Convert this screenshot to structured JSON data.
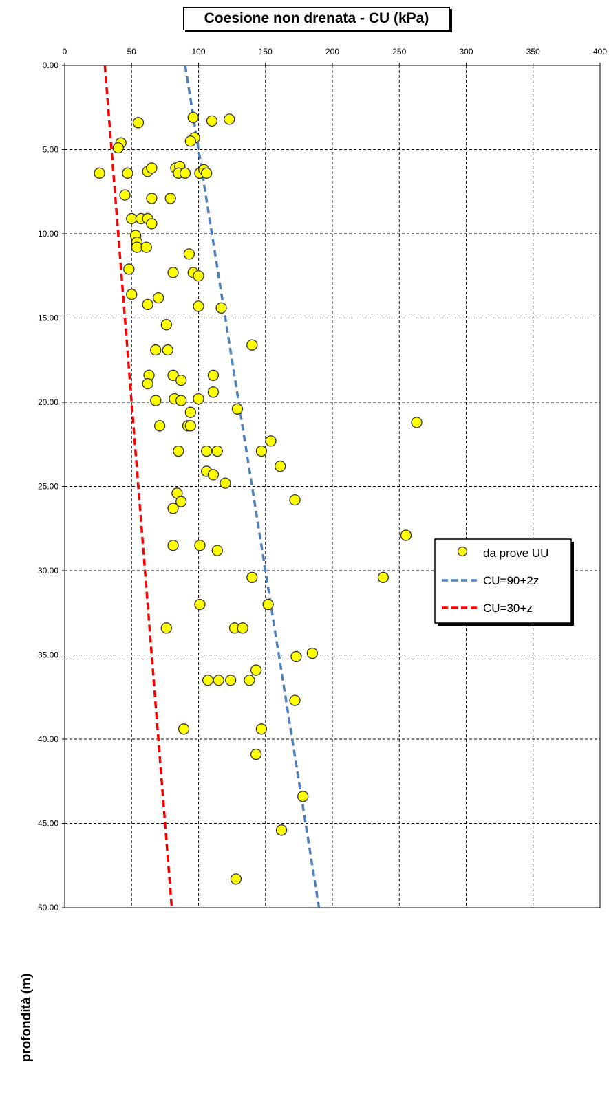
{
  "chart_data": {
    "type": "scatter",
    "title": "Coesione non drenata - CU (kPa)",
    "xlabel": "",
    "ylabel": "profondità (m)",
    "xlim": [
      0,
      400
    ],
    "ylim": [
      0,
      50
    ],
    "y_inverted": true,
    "x_axis_position": "top",
    "x_ticks": [
      "0",
      "50",
      "100",
      "150",
      "200",
      "250",
      "300",
      "350",
      "400"
    ],
    "y_ticks": [
      "0.00",
      "5.00",
      "10.00",
      "15.00",
      "20.00",
      "25.00",
      "30.00",
      "35.00",
      "40.00",
      "45.00",
      "50.00"
    ],
    "grid": true,
    "legend_position": "right",
    "series": [
      {
        "name": "da prove UU",
        "kind": "points",
        "color": "#ffff00",
        "edge_color": "#333333",
        "points": [
          [
            96,
            3.1
          ],
          [
            110,
            3.3
          ],
          [
            123,
            3.2
          ],
          [
            55,
            3.4
          ],
          [
            97,
            4.3
          ],
          [
            94,
            4.5
          ],
          [
            42,
            4.6
          ],
          [
            40,
            4.9
          ],
          [
            26,
            6.4
          ],
          [
            47,
            6.4
          ],
          [
            62,
            6.3
          ],
          [
            65,
            6.1
          ],
          [
            83,
            6.1
          ],
          [
            86,
            6.0
          ],
          [
            85,
            6.4
          ],
          [
            90,
            6.4
          ],
          [
            101,
            6.4
          ],
          [
            104,
            6.2
          ],
          [
            106,
            6.4
          ],
          [
            45,
            7.7
          ],
          [
            65,
            7.9
          ],
          [
            79,
            7.9
          ],
          [
            50,
            9.1
          ],
          [
            57,
            9.1
          ],
          [
            62,
            9.1
          ],
          [
            65,
            9.4
          ],
          [
            53,
            10.1
          ],
          [
            54,
            10.5
          ],
          [
            54,
            10.8
          ],
          [
            61,
            10.8
          ],
          [
            93,
            11.2
          ],
          [
            48,
            12.1
          ],
          [
            81,
            12.3
          ],
          [
            96,
            12.3
          ],
          [
            100,
            12.5
          ],
          [
            50,
            13.6
          ],
          [
            70,
            13.8
          ],
          [
            62,
            14.2
          ],
          [
            100,
            14.3
          ],
          [
            117,
            14.4
          ],
          [
            76,
            15.4
          ],
          [
            140,
            16.6
          ],
          [
            68,
            16.9
          ],
          [
            77,
            16.9
          ],
          [
            63,
            18.4
          ],
          [
            81,
            18.4
          ],
          [
            87,
            18.7
          ],
          [
            111,
            18.4
          ],
          [
            62,
            18.9
          ],
          [
            111,
            19.4
          ],
          [
            68,
            19.9
          ],
          [
            82,
            19.8
          ],
          [
            87,
            19.9
          ],
          [
            100,
            19.8
          ],
          [
            129,
            20.4
          ],
          [
            94,
            20.6
          ],
          [
            71,
            21.4
          ],
          [
            92,
            21.4
          ],
          [
            94,
            21.4
          ],
          [
            263,
            21.2
          ],
          [
            154,
            22.3
          ],
          [
            85,
            22.9
          ],
          [
            106,
            22.9
          ],
          [
            114,
            22.9
          ],
          [
            147,
            22.9
          ],
          [
            161,
            23.8
          ],
          [
            106,
            24.1
          ],
          [
            111,
            24.3
          ],
          [
            120,
            24.8
          ],
          [
            84,
            25.4
          ],
          [
            87,
            25.9
          ],
          [
            81,
            26.3
          ],
          [
            172,
            25.8
          ],
          [
            255,
            27.9
          ],
          [
            81,
            28.5
          ],
          [
            101,
            28.5
          ],
          [
            114,
            28.8
          ],
          [
            140,
            30.4
          ],
          [
            238,
            30.4
          ],
          [
            101,
            32.0
          ],
          [
            152,
            32.0
          ],
          [
            76,
            33.4
          ],
          [
            127,
            33.4
          ],
          [
            133,
            33.4
          ],
          [
            185,
            34.9
          ],
          [
            173,
            35.1
          ],
          [
            143,
            35.9
          ],
          [
            107,
            36.5
          ],
          [
            115,
            36.5
          ],
          [
            124,
            36.5
          ],
          [
            138,
            36.5
          ],
          [
            172,
            37.7
          ],
          [
            89,
            39.4
          ],
          [
            147,
            39.4
          ],
          [
            143,
            40.9
          ],
          [
            178,
            43.4
          ],
          [
            162,
            45.4
          ],
          [
            128,
            48.3
          ]
        ]
      },
      {
        "name": "CU=90+2z",
        "kind": "dashed-line",
        "color": "#4f81bd",
        "points": [
          [
            90,
            0
          ],
          [
            190,
            50
          ]
        ]
      },
      {
        "name": "CU=30+z",
        "kind": "dashed-line",
        "color": "#ff0000",
        "points": [
          [
            30,
            0
          ],
          [
            80,
            50
          ]
        ]
      }
    ]
  }
}
